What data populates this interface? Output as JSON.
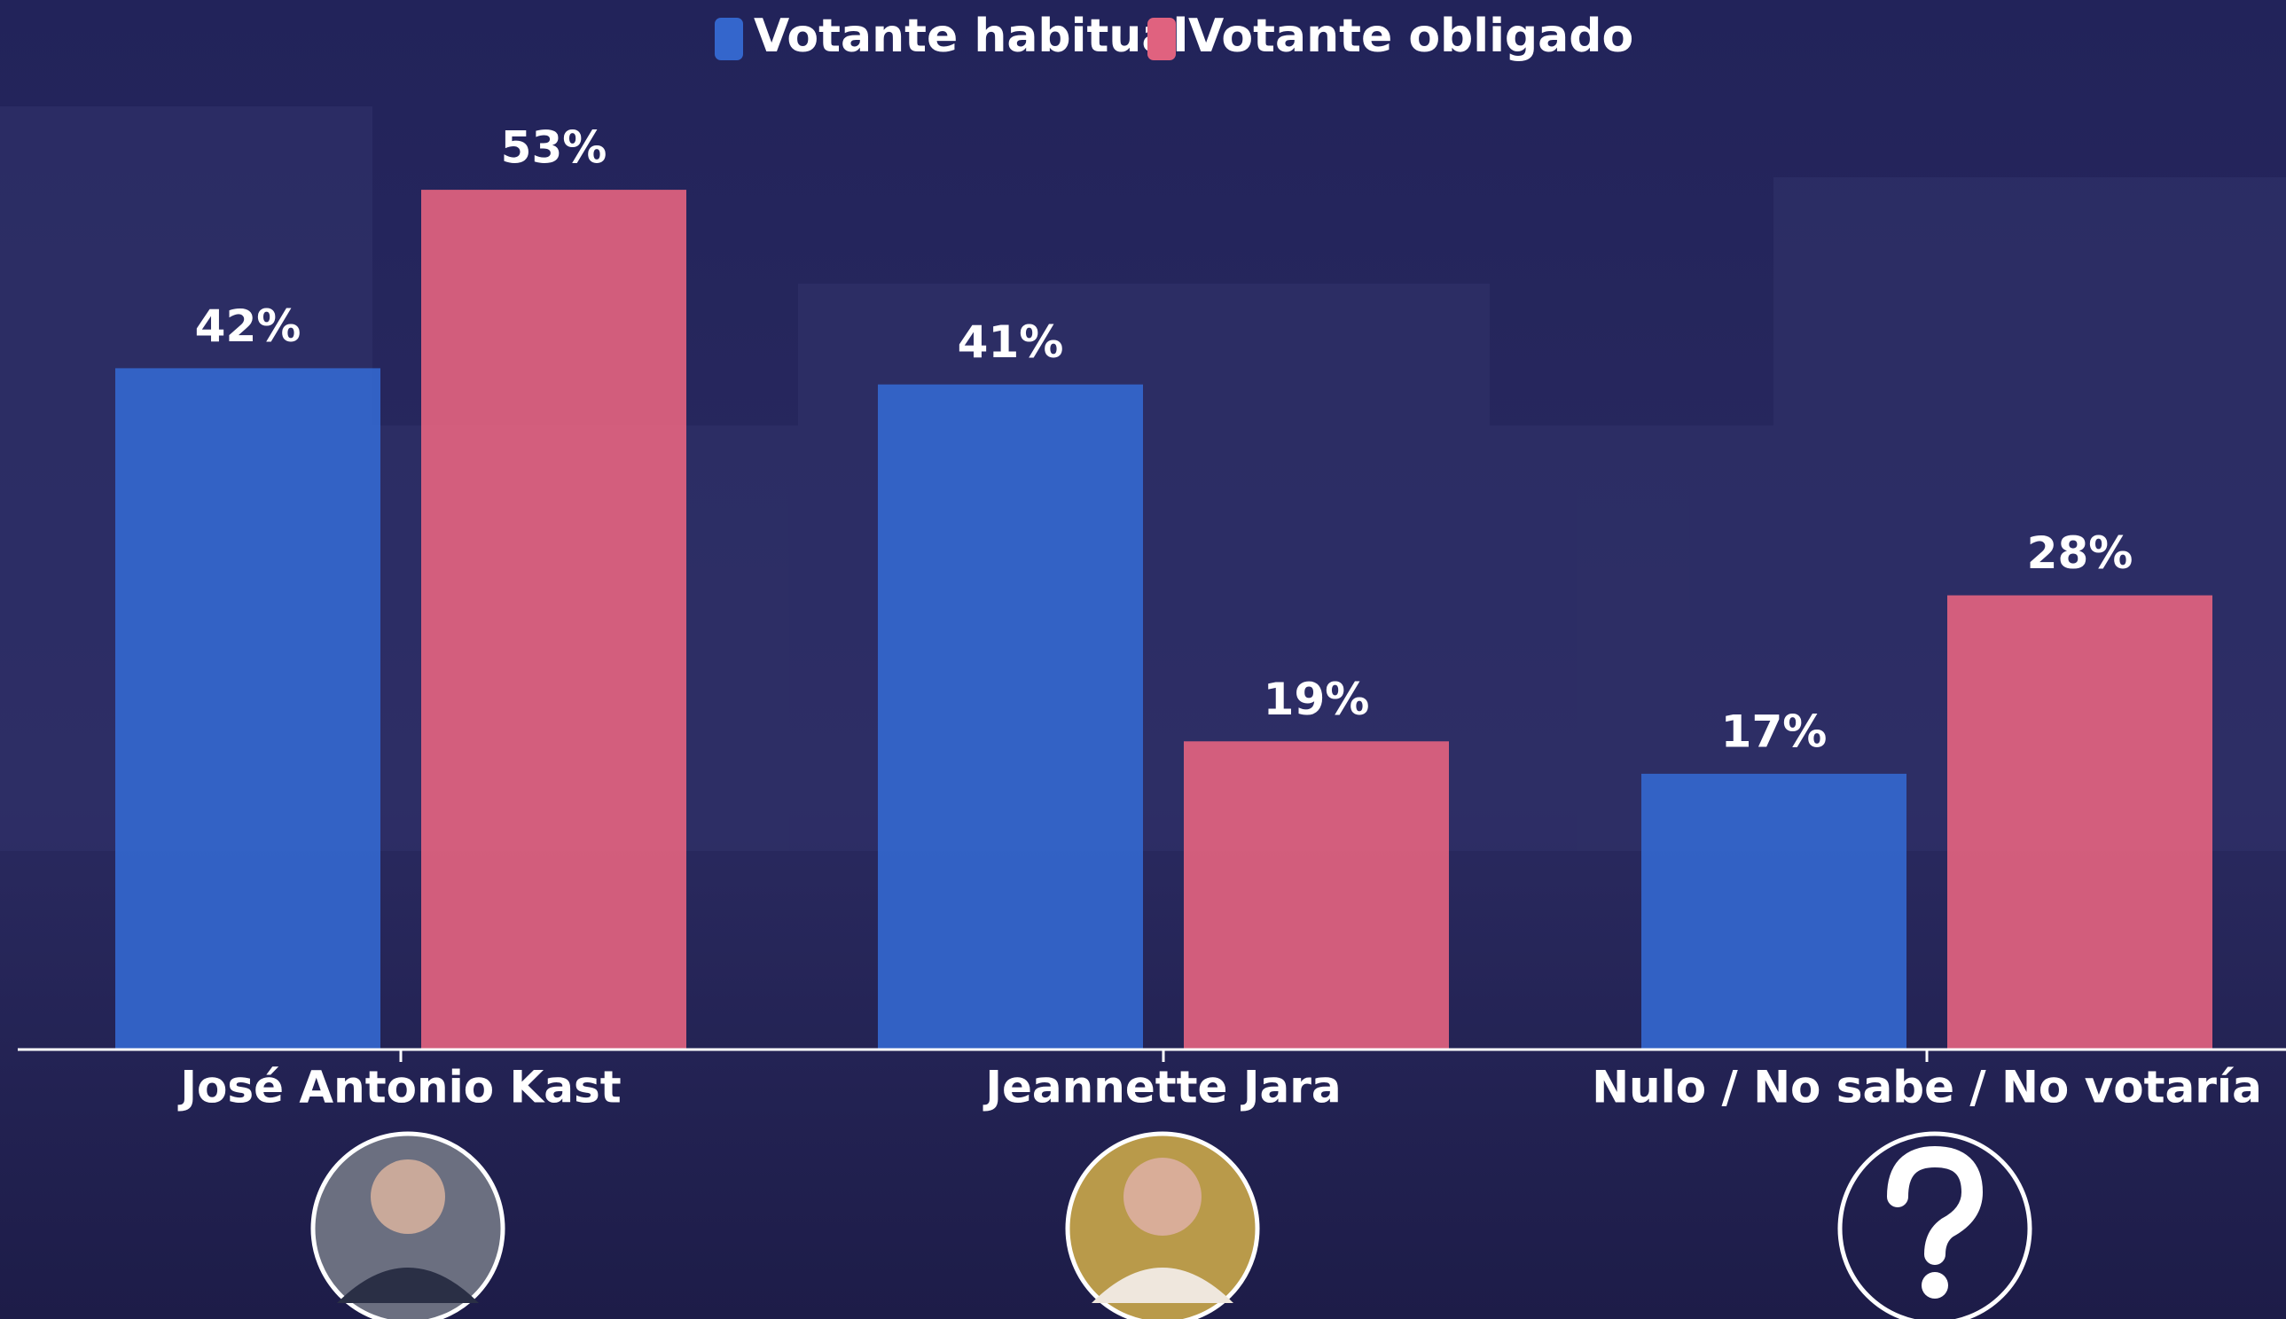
{
  "chart_data": {
    "type": "bar",
    "categories": [
      "José Antonio Kast",
      "Jeannette Jara",
      "Nulo / No sabe / No votaría"
    ],
    "series": [
      {
        "name": "Votante habitual",
        "color": "#3466cc",
        "values": [
          42,
          41,
          17
        ],
        "value_labels": [
          "42%",
          "41%",
          "17%"
        ]
      },
      {
        "name": "Votante obligado",
        "color": "#e0627f",
        "values": [
          53,
          19,
          28
        ],
        "value_labels": [
          "53%",
          "19%",
          "28%"
        ]
      }
    ]
  }
}
